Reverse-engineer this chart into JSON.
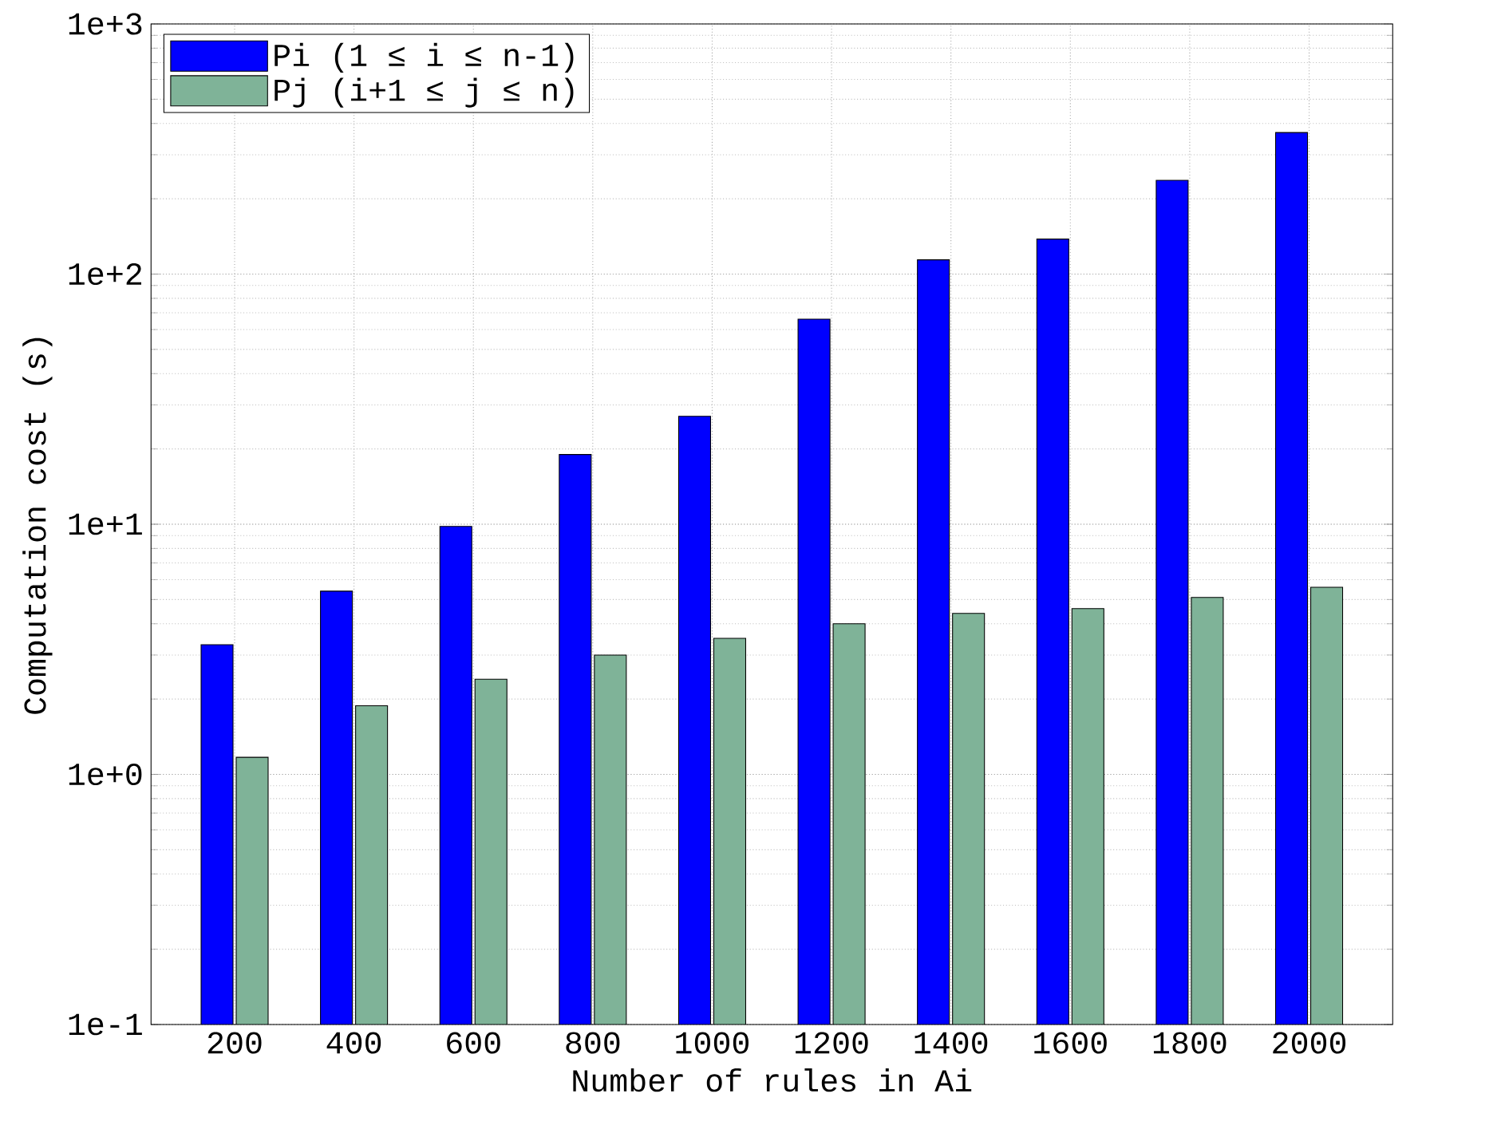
{
  "chart_data": {
    "type": "bar",
    "xlabel": "Number of rules in Ai",
    "ylabel": "Computation cost (s)",
    "categories": [
      "200",
      "400",
      "600",
      "800",
      "1000",
      "1200",
      "1400",
      "1600",
      "1800",
      "2000"
    ],
    "series": [
      {
        "name": "Pi (1 ≤ i ≤ n-1)",
        "color": "#0000ff",
        "values": [
          3.3,
          5.4,
          9.8,
          19,
          27,
          66,
          114,
          138,
          237,
          368
        ]
      },
      {
        "name": "Pj (i+1 ≤ j ≤ n)",
        "color": "#7fb398",
        "values": [
          1.17,
          1.88,
          2.4,
          3.0,
          3.5,
          4.0,
          4.4,
          4.6,
          5.1,
          5.6
        ]
      }
    ],
    "log": "y",
    "ylim": [
      0.1,
      1000
    ],
    "yticks": [
      {
        "value": 0.1,
        "label": "1e-1"
      },
      {
        "value": 1,
        "label": "1e+0"
      },
      {
        "value": 10,
        "label": "1e+1"
      },
      {
        "value": 100,
        "label": "1e+2"
      },
      {
        "value": 1000,
        "label": "1e+3"
      }
    ],
    "grid": true,
    "legend": "top left"
  }
}
